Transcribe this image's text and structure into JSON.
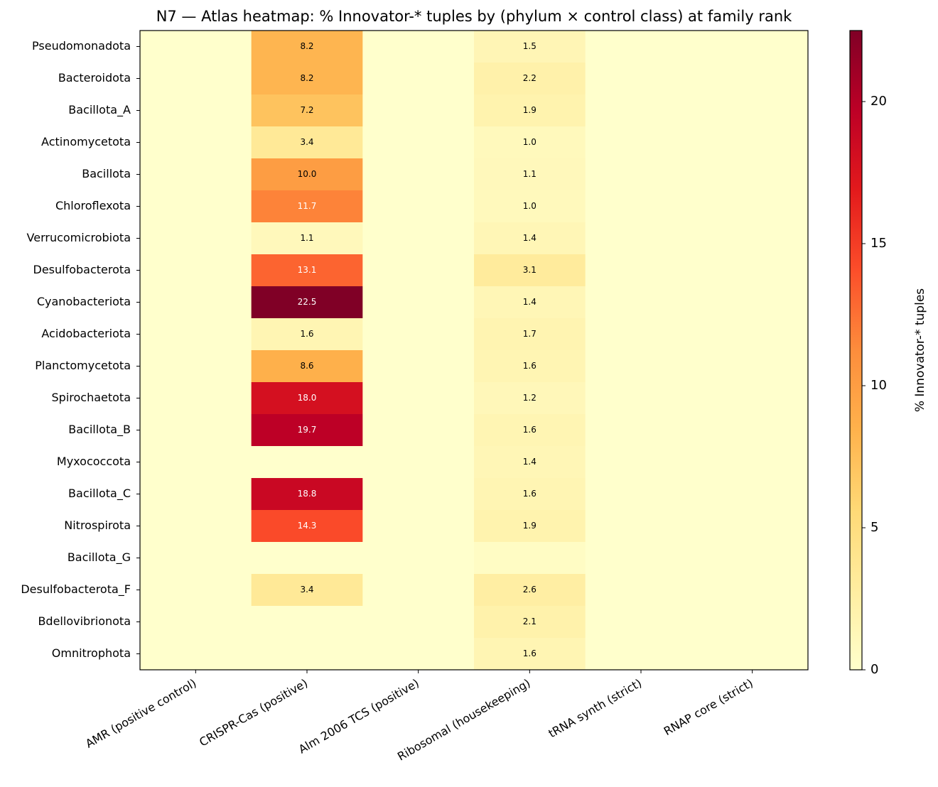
{
  "chart_data": {
    "type": "heatmap",
    "title": "N7 — Atlas heatmap: % Innovator-* tuples by (phylum × control class) at family rank",
    "x_categories": [
      "AMR (positive control)",
      "CRISPR-Cas (positive)",
      "Alm 2006 TCS (positive)",
      "Ribosomal (housekeeping)",
      "tRNA synth (strict)",
      "RNAP core (strict)"
    ],
    "y_categories": [
      "Pseudomonadota",
      "Bacteroidota",
      "Bacillota_A",
      "Actinomycetota",
      "Bacillota",
      "Chloroflexota",
      "Verrucomicrobiota",
      "Desulfobacterota",
      "Cyanobacteriota",
      "Acidobacteriota",
      "Planctomycetota",
      "Spirochaetota",
      "Bacillota_B",
      "Myxococcota",
      "Bacillota_C",
      "Nitrospirota",
      "Bacillota_G",
      "Desulfobacterota_F",
      "Bdellovibrionota",
      "Omnitrophota"
    ],
    "values": [
      [
        0,
        8.2,
        0,
        1.5,
        0,
        0
      ],
      [
        0,
        8.2,
        0,
        2.2,
        0,
        0
      ],
      [
        0,
        7.2,
        0,
        1.9,
        0,
        0
      ],
      [
        0,
        3.4,
        0,
        1.0,
        0,
        0
      ],
      [
        0,
        10.0,
        0,
        1.1,
        0,
        0
      ],
      [
        0,
        11.7,
        0,
        1.0,
        0,
        0
      ],
      [
        0,
        1.1,
        0,
        1.4,
        0,
        0
      ],
      [
        0,
        13.1,
        0,
        3.1,
        0,
        0
      ],
      [
        0,
        22.5,
        0,
        1.4,
        0,
        0
      ],
      [
        0,
        1.6,
        0,
        1.7,
        0,
        0
      ],
      [
        0,
        8.6,
        0,
        1.6,
        0,
        0
      ],
      [
        0,
        18.0,
        0,
        1.2,
        0,
        0
      ],
      [
        0,
        19.7,
        0,
        1.6,
        0,
        0
      ],
      [
        0,
        0,
        0,
        1.4,
        0,
        0
      ],
      [
        0,
        18.8,
        0,
        1.6,
        0,
        0
      ],
      [
        0,
        14.3,
        0,
        1.9,
        0,
        0
      ],
      [
        0,
        0,
        0,
        0.5,
        0,
        0
      ],
      [
        0,
        3.4,
        0,
        2.6,
        0,
        0
      ],
      [
        0,
        0,
        0,
        2.1,
        0,
        0
      ],
      [
        0,
        0,
        0,
        1.6,
        0,
        0
      ]
    ],
    "value_labels": [
      [
        null,
        "8.2",
        null,
        "1.5",
        null,
        null
      ],
      [
        null,
        "8.2",
        null,
        "2.2",
        null,
        null
      ],
      [
        null,
        "7.2",
        null,
        "1.9",
        null,
        null
      ],
      [
        null,
        "3.4",
        null,
        "1.0",
        null,
        null
      ],
      [
        null,
        "10.0",
        null,
        "1.1",
        null,
        null
      ],
      [
        null,
        "11.7",
        null,
        "1.0",
        null,
        null
      ],
      [
        null,
        "1.1",
        null,
        "1.4",
        null,
        null
      ],
      [
        null,
        "13.1",
        null,
        "3.1",
        null,
        null
      ],
      [
        null,
        "22.5",
        null,
        "1.4",
        null,
        null
      ],
      [
        null,
        "1.6",
        null,
        "1.7",
        null,
        null
      ],
      [
        null,
        "8.6",
        null,
        "1.6",
        null,
        null
      ],
      [
        null,
        "18.0",
        null,
        "1.2",
        null,
        null
      ],
      [
        null,
        "19.7",
        null,
        "1.6",
        null,
        null
      ],
      [
        null,
        null,
        null,
        "1.4",
        null,
        null
      ],
      [
        null,
        "18.8",
        null,
        "1.6",
        null,
        null
      ],
      [
        null,
        "14.3",
        null,
        "1.9",
        null,
        null
      ],
      [
        null,
        null,
        null,
        null,
        null,
        null
      ],
      [
        null,
        "3.4",
        null,
        "2.6",
        null,
        null
      ],
      [
        null,
        null,
        null,
        "2.1",
        null,
        null
      ],
      [
        null,
        null,
        null,
        "1.6",
        null,
        null
      ]
    ],
    "colormap": "YlOrRd",
    "clim": [
      0,
      22.5
    ],
    "colorbar_ticks": [
      0,
      5,
      10,
      15,
      20
    ],
    "colorbar_label": "% Innovator-* tuples"
  }
}
